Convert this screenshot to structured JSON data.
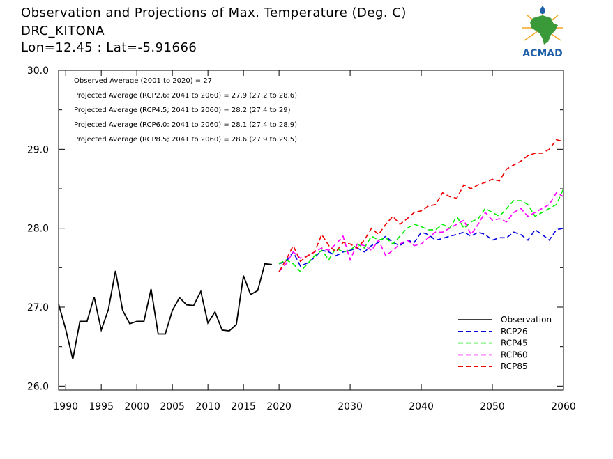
{
  "header": {
    "title": "Observation and Projections of Max. Temperature (Deg. C)",
    "station": "DRC_KITONA",
    "coords": "Lon=12.45 : Lat=-5.91666"
  },
  "logo": {
    "text": "ACMAD",
    "icon": "africa-map-sun-logo",
    "colors": {
      "blue": "#1f5fa8",
      "green": "#3a9a3a",
      "orange": "#f5a623"
    }
  },
  "annotations": [
    "Observed Average (2001 to 2020) = 27",
    "Projected Average (RCP2.6; 2041 to 2060) = 27.9 (27.2 to 28.6)",
    "Projected Average (RCP4.5; 2041 to 2060) = 28.2 (27.4 to 29)",
    "Projected Average (RCP6.0; 2041 to 2060) = 28.1 (27.4 to 28.9)",
    "Projected Average (RCP8.5; 2041 to 2060) = 28.6 (27.9 to 29.5)"
  ],
  "chart_data": {
    "type": "line",
    "xlim": [
      1989,
      2060
    ],
    "ylim": [
      25.95,
      30.0
    ],
    "x_ticks": [
      1990,
      1995,
      2000,
      2005,
      2010,
      2015,
      2020,
      2030,
      2040,
      2050,
      2060
    ],
    "y_ticks": [
      26.0,
      27.0,
      28.0,
      29.0,
      30.0
    ],
    "y_tick_labels": [
      "26.0",
      "27.0",
      "28.0",
      "29.0",
      "30.0"
    ],
    "legend_position": "bottom-right",
    "grid": false,
    "series": [
      {
        "name": "Observation",
        "color": "#000000",
        "dashed": false,
        "x": [
          1989,
          1990,
          1991,
          1992,
          1993,
          1994,
          1995,
          1996,
          1997,
          1998,
          1999,
          2000,
          2001,
          2002,
          2003,
          2004,
          2005,
          2006,
          2007,
          2008,
          2009,
          2010,
          2011,
          2012,
          2013,
          2014,
          2015,
          2016,
          2017,
          2018,
          2019
        ],
        "y": [
          27.04,
          26.72,
          26.34,
          26.82,
          26.82,
          27.13,
          26.71,
          26.97,
          27.46,
          26.96,
          26.79,
          26.82,
          26.82,
          27.23,
          26.66,
          26.66,
          26.96,
          27.12,
          27.03,
          27.02,
          27.2,
          26.8,
          26.94,
          26.71,
          26.7,
          26.78,
          27.4,
          27.16,
          27.21,
          27.55,
          27.54
        ]
      },
      {
        "name": "RCP26",
        "color": "#0000dd",
        "dashed": true,
        "x": [
          2020,
          2021,
          2022,
          2023,
          2024,
          2025,
          2026,
          2027,
          2028,
          2029,
          2030,
          2031,
          2032,
          2033,
          2034,
          2035,
          2036,
          2037,
          2038,
          2039,
          2040,
          2041,
          2042,
          2043,
          2044,
          2045,
          2046,
          2047,
          2048,
          2049,
          2050,
          2051,
          2052,
          2053,
          2054,
          2055,
          2056,
          2057,
          2058,
          2059,
          2060
        ],
        "y": [
          27.55,
          27.58,
          27.7,
          27.52,
          27.56,
          27.63,
          27.72,
          27.7,
          27.65,
          27.7,
          27.72,
          27.75,
          27.7,
          27.78,
          27.82,
          27.9,
          27.82,
          27.78,
          27.85,
          27.82,
          27.95,
          27.92,
          27.85,
          27.87,
          27.9,
          27.92,
          27.95,
          27.9,
          27.95,
          27.92,
          27.85,
          27.88,
          27.88,
          27.95,
          27.92,
          27.85,
          27.98,
          27.92,
          27.85,
          27.98,
          28.0
        ]
      },
      {
        "name": "RCP45",
        "color": "#00ee00",
        "dashed": true,
        "x": [
          2020,
          2021,
          2022,
          2023,
          2024,
          2025,
          2026,
          2027,
          2028,
          2029,
          2030,
          2031,
          2032,
          2033,
          2034,
          2035,
          2036,
          2037,
          2038,
          2039,
          2040,
          2041,
          2042,
          2043,
          2044,
          2045,
          2046,
          2047,
          2048,
          2049,
          2050,
          2051,
          2052,
          2053,
          2054,
          2055,
          2056,
          2057,
          2058,
          2059,
          2060
        ],
        "y": [
          27.55,
          27.6,
          27.55,
          27.45,
          27.55,
          27.65,
          27.72,
          27.6,
          27.75,
          27.7,
          27.72,
          27.8,
          27.75,
          27.9,
          27.85,
          27.88,
          27.8,
          27.9,
          28.0,
          28.05,
          28.02,
          27.98,
          27.98,
          28.05,
          28.0,
          28.15,
          28.0,
          28.08,
          28.12,
          28.25,
          28.2,
          28.15,
          28.25,
          28.35,
          28.35,
          28.3,
          28.15,
          28.2,
          28.25,
          28.3,
          28.5
        ]
      },
      {
        "name": "RCP60",
        "color": "#ff00ff",
        "dashed": true,
        "x": [
          2020,
          2021,
          2022,
          2023,
          2024,
          2025,
          2026,
          2027,
          2028,
          2029,
          2030,
          2031,
          2032,
          2033,
          2034,
          2035,
          2036,
          2037,
          2038,
          2039,
          2040,
          2041,
          2042,
          2043,
          2044,
          2045,
          2046,
          2047,
          2048,
          2049,
          2050,
          2051,
          2052,
          2053,
          2054,
          2055,
          2056,
          2057,
          2058,
          2059,
          2060
        ],
        "y": [
          27.45,
          27.55,
          27.7,
          27.62,
          27.65,
          27.7,
          27.75,
          27.72,
          27.8,
          27.9,
          27.6,
          27.8,
          27.78,
          27.72,
          27.85,
          27.65,
          27.72,
          27.8,
          27.85,
          27.78,
          27.8,
          27.88,
          27.95,
          27.95,
          28.0,
          28.05,
          28.1,
          27.92,
          28.05,
          28.2,
          28.1,
          28.12,
          28.08,
          28.2,
          28.25,
          28.15,
          28.2,
          28.25,
          28.3,
          28.45,
          28.4
        ]
      },
      {
        "name": "RCP85",
        "color": "#ee0000",
        "dashed": true,
        "x": [
          2020,
          2021,
          2022,
          2023,
          2024,
          2025,
          2026,
          2027,
          2028,
          2029,
          2030,
          2031,
          2032,
          2033,
          2034,
          2035,
          2036,
          2037,
          2038,
          2039,
          2040,
          2041,
          2042,
          2043,
          2044,
          2045,
          2046,
          2047,
          2048,
          2049,
          2050,
          2051,
          2052,
          2053,
          2054,
          2055,
          2056,
          2057,
          2058,
          2059,
          2060
        ],
        "y": [
          27.45,
          27.6,
          27.78,
          27.58,
          27.65,
          27.7,
          27.92,
          27.78,
          27.7,
          27.82,
          27.8,
          27.75,
          27.85,
          28.0,
          27.92,
          28.05,
          28.15,
          28.05,
          28.12,
          28.2,
          28.22,
          28.28,
          28.3,
          28.45,
          28.4,
          28.38,
          28.55,
          28.5,
          28.55,
          28.58,
          28.62,
          28.6,
          28.75,
          28.8,
          28.85,
          28.92,
          28.95,
          28.95,
          29.0,
          29.12,
          29.1
        ]
      }
    ]
  }
}
